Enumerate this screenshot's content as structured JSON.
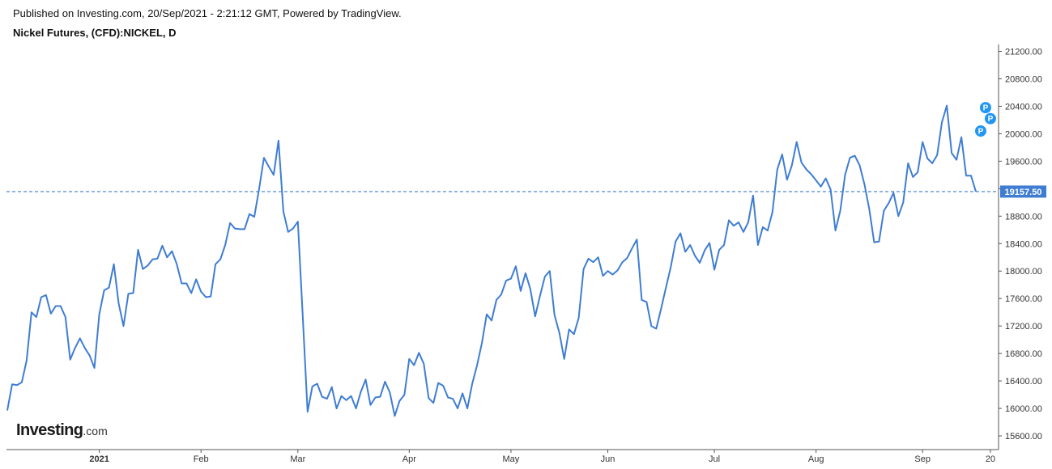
{
  "header": {
    "published": "Published on Investing.com, 20/Sep/2021 - 2:21:12 GMT, Powered by TradingView.",
    "title": "Nickel Futures, (CFD):NICKEL, D"
  },
  "logo": {
    "main": "Investing",
    "suffix": ".com"
  },
  "colors": {
    "line": "#3f7dd3",
    "marker": "#2196f3",
    "price_label_bg": "#3f7dd3",
    "axis": "#555555",
    "text": "#333333"
  },
  "chart_data": {
    "type": "line",
    "series": [
      {
        "values": [
          15970,
          16350,
          16340,
          16380,
          16700,
          17400,
          17330,
          17620,
          17650,
          17380,
          17490,
          17490,
          17330,
          16710,
          16880,
          17020,
          16880,
          16770,
          16590,
          17370,
          17720,
          17760,
          18100,
          17530,
          17200,
          17670,
          17680,
          18310,
          18030,
          18080,
          18170,
          18180,
          18370,
          18200,
          18290,
          18100,
          17820,
          17820,
          17680,
          17880,
          17700,
          17620,
          17630,
          18100,
          18170,
          18380,
          18700,
          18620,
          18610,
          18610,
          18830,
          18790,
          19200,
          19650,
          19520,
          19400,
          19900,
          18870,
          18570,
          18620,
          18720,
          17350,
          15950,
          16320,
          16360,
          16170,
          16140,
          16310,
          16000,
          16180,
          16120,
          16180,
          16000,
          16240,
          16420,
          16050,
          16160,
          16170,
          16390,
          16230,
          15890,
          16110,
          16200,
          16720,
          16630,
          16810,
          16650,
          16150,
          16080,
          16370,
          16330,
          16160,
          16140,
          16000,
          16220,
          16000,
          16360,
          16630,
          16950,
          17370,
          17280,
          17580,
          17660,
          17860,
          17890,
          18070,
          17710,
          17970,
          17740,
          17340,
          17640,
          17920,
          18000,
          17360,
          17100,
          16720,
          17150,
          17080,
          17320,
          18030,
          18180,
          18130,
          18200,
          17930,
          18000,
          17950,
          18010,
          18130,
          18190,
          18330,
          18460,
          17580,
          17550,
          17200,
          17160,
          17450,
          17760,
          18060,
          18430,
          18550,
          18280,
          18380,
          18220,
          18120,
          18300,
          18410,
          18020,
          18310,
          18380,
          18740,
          18660,
          18710,
          18570,
          18710,
          19100,
          18380,
          18640,
          18590,
          18860,
          19480,
          19700,
          19330,
          19540,
          19880,
          19580,
          19480,
          19410,
          19320,
          19230,
          19350,
          19190,
          18590,
          18880,
          19400,
          19650,
          19680,
          19540,
          19260,
          18900,
          18420,
          18430,
          18880,
          18990,
          19140,
          18800,
          19000,
          19570,
          19370,
          19440,
          19880,
          19640,
          19570,
          19690,
          20170,
          20410,
          19720,
          19620,
          19950,
          19390,
          19390,
          19157.5
        ]
      }
    ],
    "last_price_label": "19157.50",
    "last_price": 19157.5,
    "markers": [
      {
        "label": "P",
        "index": 201,
        "value": 20040
      },
      {
        "label": "P",
        "index": 202,
        "value": 20380
      },
      {
        "label": "P",
        "index": 203,
        "value": 20220
      }
    ],
    "ylim": [
      15400,
      21300
    ],
    "y_ticks": [
      "15600.00",
      "16000.00",
      "16400.00",
      "16800.00",
      "17200.00",
      "17600.00",
      "18000.00",
      "18400.00",
      "18800.00",
      "19200.00",
      "19600.00",
      "20000.00",
      "20400.00",
      "20800.00",
      "21200.00"
    ],
    "x_ticks": [
      {
        "label": "2021",
        "index": 19,
        "bold": true
      },
      {
        "label": "Feb",
        "index": 40
      },
      {
        "label": "Mar",
        "index": 60
      },
      {
        "label": "Apr",
        "index": 83
      },
      {
        "label": "May",
        "index": 104
      },
      {
        "label": "Jun",
        "index": 124
      },
      {
        "label": "Jul",
        "index": 146
      },
      {
        "label": "Aug",
        "index": 167
      },
      {
        "label": "Sep",
        "index": 189
      },
      {
        "label": "20",
        "index": 203
      }
    ],
    "title": "Nickel Futures, (CFD):NICKEL, D",
    "xlabel": "",
    "ylabel": "",
    "grid": false
  }
}
